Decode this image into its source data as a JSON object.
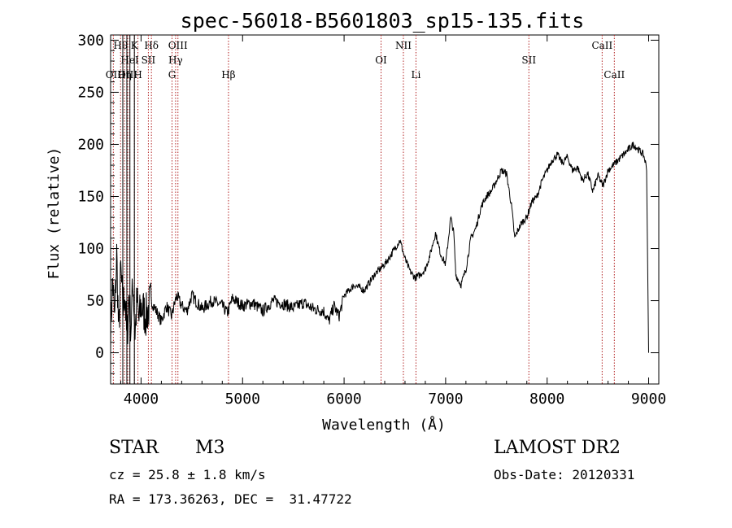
{
  "chart_data": {
    "type": "line",
    "title": "spec-56018-B5601803_sp15-135.fits",
    "xlabel": "Wavelength (Å)",
    "ylabel": "Flux (relative)",
    "xlim": [
      3700,
      9100
    ],
    "ylim": [
      -30,
      305
    ],
    "xticks": [
      4000,
      5000,
      6000,
      7000,
      8000,
      9000
    ],
    "yticks": [
      0,
      50,
      100,
      150,
      200,
      250,
      300
    ],
    "series": [
      {
        "name": "flux",
        "x": [
          3700,
          3720,
          3740,
          3760,
          3780,
          3800,
          3820,
          3840,
          3860,
          3880,
          3900,
          3920,
          3940,
          3960,
          3980,
          4000,
          4050,
          4100,
          4150,
          4200,
          4250,
          4300,
          4350,
          4400,
          4450,
          4500,
          4600,
          4700,
          4800,
          4850,
          4900,
          5000,
          5100,
          5200,
          5300,
          5400,
          5500,
          5600,
          5700,
          5800,
          5850,
          5900,
          5950,
          6000,
          6100,
          6200,
          6300,
          6400,
          6450,
          6500,
          6550,
          6600,
          6650,
          6700,
          6750,
          6800,
          6850,
          6900,
          6950,
          7000,
          7050,
          7080,
          7100,
          7150,
          7200,
          7250,
          7300,
          7350,
          7400,
          7450,
          7500,
          7550,
          7600,
          7650,
          7680,
          7700,
          7750,
          7800,
          7850,
          7900,
          7950,
          8000,
          8050,
          8100,
          8150,
          8200,
          8250,
          8300,
          8350,
          8400,
          8450,
          8500,
          8550,
          8600,
          8650,
          8700,
          8750,
          8800,
          8850,
          8900,
          8950,
          8980,
          9000
        ],
        "values": [
          20,
          70,
          30,
          95,
          15,
          80,
          40,
          60,
          10,
          55,
          25,
          70,
          20,
          50,
          30,
          45,
          35,
          50,
          40,
          30,
          45,
          35,
          55,
          45,
          40,
          55,
          42,
          50,
          45,
          38,
          52,
          45,
          48,
          40,
          50,
          47,
          43,
          48,
          42,
          40,
          30,
          45,
          35,
          55,
          65,
          60,
          75,
          85,
          92,
          100,
          108,
          90,
          78,
          72,
          75,
          80,
          95,
          115,
          95,
          85,
          130,
          115,
          75,
          65,
          80,
          110,
          120,
          140,
          150,
          155,
          165,
          175,
          172,
          140,
          110,
          115,
          125,
          130,
          145,
          150,
          165,
          175,
          185,
          190,
          182,
          188,
          175,
          178,
          165,
          172,
          155,
          170,
          160,
          175,
          180,
          185,
          190,
          195,
          200,
          195,
          190,
          178,
          0
        ]
      }
    ],
    "emission_lines": [
      {
        "label": "OII",
        "x": 3727,
        "row": 2
      },
      {
        "label": "Hθ",
        "x": 3798,
        "row": 0
      },
      {
        "label": "OIII",
        "x": 3869,
        "row": 2
      },
      {
        "label": "Hη",
        "x": 3836,
        "row": 2
      },
      {
        "label": "K",
        "x": 3934,
        "row": 0
      },
      {
        "label": "H",
        "x": 3969,
        "row": 2
      },
      {
        "label": "HeI",
        "x": 3889,
        "row": 1
      },
      {
        "label": "Hδ",
        "x": 4102,
        "row": 0
      },
      {
        "label": "SII",
        "x": 4072,
        "row": 1
      },
      {
        "label": "OIII",
        "x": 4363,
        "row": 0
      },
      {
        "label": "Hγ",
        "x": 4340,
        "row": 1
      },
      {
        "label": "G",
        "x": 4305,
        "row": 2
      },
      {
        "label": "Hβ",
        "x": 4861,
        "row": 2
      },
      {
        "label": "OI",
        "x": 6364,
        "row": 1
      },
      {
        "label": "NII",
        "x": 6584,
        "row": 0
      },
      {
        "label": "Li",
        "x": 6708,
        "row": 2
      },
      {
        "label": "SII",
        "x": 7820,
        "row": 1
      },
      {
        "label": "CaII",
        "x": 8542,
        "row": 0
      },
      {
        "label": "CaII",
        "x": 8662,
        "row": 2
      }
    ],
    "absorption_lines": [
      3820,
      3860,
      3890,
      3934
    ]
  },
  "info": {
    "object_class": "STAR",
    "subclass": "M3",
    "velocity": "cz = 25.8 ± 1.8 km/s",
    "coordinates": "RA = 173.36263, DEC =  31.47722",
    "survey": "LAMOST DR2",
    "obs_date": "Obs-Date: 20120331"
  }
}
